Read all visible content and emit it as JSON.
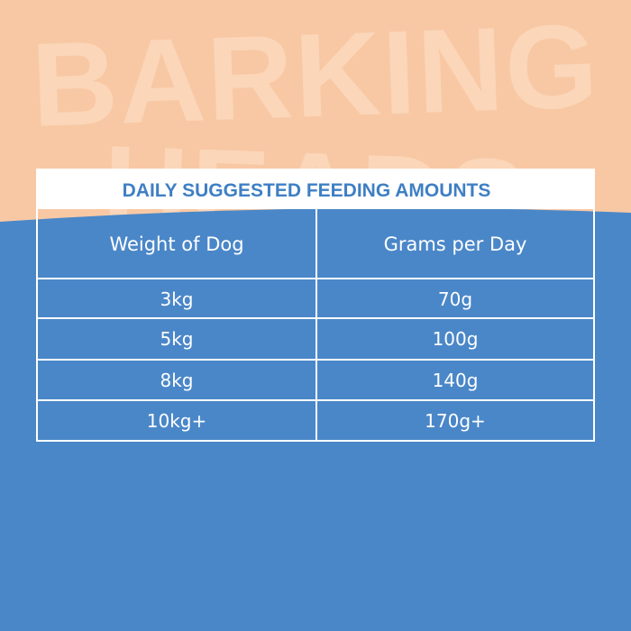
{
  "background_text": [
    "BARKING",
    "HEADS"
  ],
  "table": {
    "title": "DAILY SUGGESTED FEEDING AMOUNTS",
    "header": [
      "Weight of Dog",
      "Grams per Day"
    ],
    "rows": [
      [
        "3kg",
        "70g"
      ],
      [
        "5kg",
        "100g"
      ],
      [
        "8kg",
        "140g"
      ],
      [
        "10kg+",
        "170g+"
      ]
    ]
  }
}
